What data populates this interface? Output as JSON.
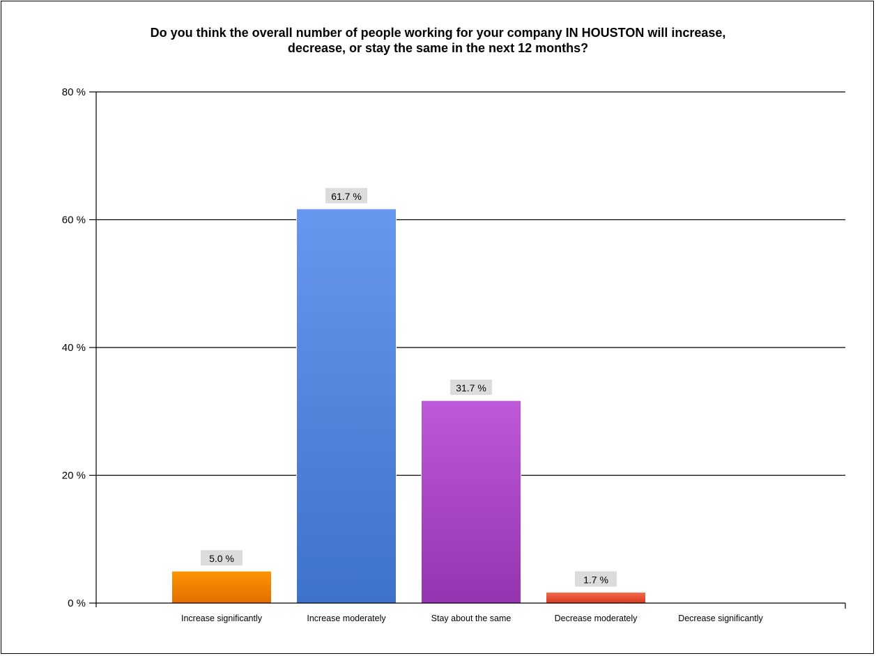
{
  "chart_data": {
    "type": "bar",
    "title_lines": [
      "Do you think the overall number of people working for your company IN HOUSTON will increase,",
      "decrease, or stay the same in the next 12 months?"
    ],
    "categories": [
      "Increase significantly",
      "Increase moderately",
      "Stay about the same",
      "Decrease moderately",
      "Decrease significantly"
    ],
    "values": [
      5.0,
      61.7,
      31.7,
      1.7,
      0
    ],
    "data_labels": [
      "5.0 %",
      "61.7 %",
      "31.7 %",
      "1.7 %",
      ""
    ],
    "ylim": [
      0,
      80
    ],
    "yticks": [
      0,
      20,
      40,
      60,
      80
    ],
    "ytick_labels": [
      "0 %",
      "20 %",
      "40 %",
      "60 %",
      "80 %"
    ],
    "xlabel": "",
    "ylabel": "",
    "grid": true,
    "legend": "none",
    "colors": [
      [
        "#ff9400",
        "#e06e00"
      ],
      [
        "#6797ee",
        "#3f72cb"
      ],
      [
        "#be59da",
        "#9533b0"
      ],
      [
        "#f56a4c",
        "#d83c22"
      ],
      [
        "#999999",
        "#777777"
      ]
    ],
    "label_background": "#dcdcdc"
  }
}
